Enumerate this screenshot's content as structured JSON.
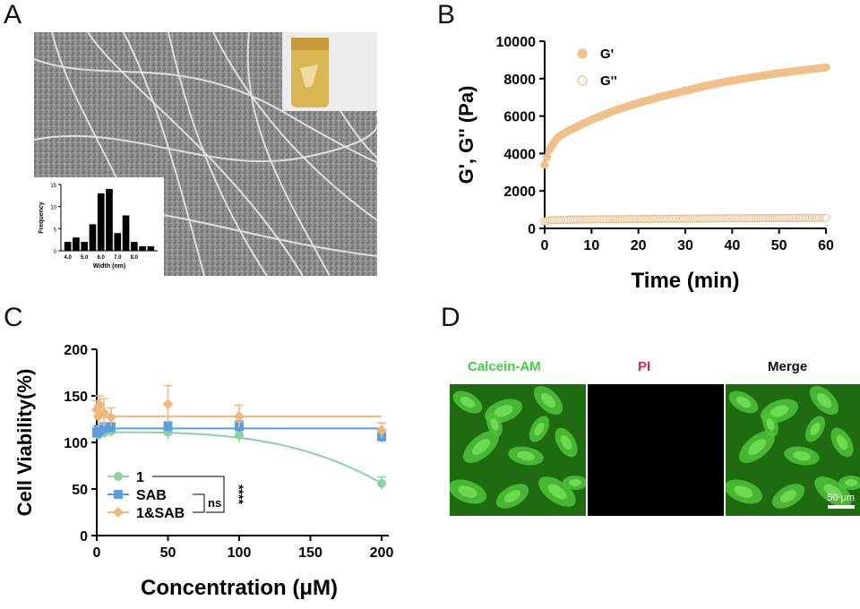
{
  "panels": {
    "A": "A",
    "B": "B",
    "C": "C",
    "D": "D"
  },
  "chart_data": [
    {
      "panel": "A",
      "type": "bar",
      "title": "",
      "xlabel": "Width (nm)",
      "ylabel": "Frequency",
      "x_ticks": [
        "4.0",
        "5.0",
        "6.0",
        "7.0",
        "8.0"
      ],
      "y_ticks": [
        0,
        5,
        10,
        15
      ],
      "ylim": [
        0,
        15
      ],
      "categories": [
        "4.0",
        "4.5",
        "5.0",
        "5.5",
        "6.0",
        "6.5",
        "7.0",
        "7.5",
        "8.0"
      ],
      "values": [
        2,
        3,
        2,
        6,
        13,
        14,
        4,
        8,
        2
      ],
      "extra_values": [
        1,
        1
      ]
    },
    {
      "panel": "B",
      "type": "scatter",
      "xlabel": "Time (min)",
      "ylabel": "G', G'' (Pa)",
      "xlim": [
        0,
        60
      ],
      "ylim": [
        0,
        10000
      ],
      "x_ticks": [
        0,
        10,
        20,
        30,
        40,
        50,
        60
      ],
      "y_ticks": [
        0,
        2000,
        4000,
        6000,
        8000,
        10000
      ],
      "legend": "top-left",
      "series": [
        {
          "name": "G'",
          "color": "#f0c08a",
          "filled": true,
          "x": [
            0,
            1,
            2,
            3,
            5,
            7,
            10,
            15,
            20,
            25,
            30,
            35,
            40,
            45,
            50,
            55,
            60
          ],
          "y": [
            3400,
            4200,
            4600,
            4900,
            5200,
            5450,
            5800,
            6300,
            6700,
            7050,
            7350,
            7650,
            7900,
            8100,
            8300,
            8450,
            8600
          ]
        },
        {
          "name": "G''",
          "color": "#f0c08a",
          "filled": false,
          "x": [
            0,
            1,
            2,
            3,
            5,
            7,
            10,
            15,
            20,
            25,
            30,
            35,
            40,
            45,
            50,
            55,
            60
          ],
          "y": [
            380,
            420,
            440,
            450,
            460,
            470,
            480,
            490,
            500,
            510,
            520,
            530,
            540,
            545,
            550,
            555,
            560
          ]
        }
      ]
    },
    {
      "panel": "C",
      "type": "line",
      "xlabel": "Concentration (μM)",
      "ylabel": "Cell Viability(%)",
      "xlim": [
        0,
        200
      ],
      "ylim": [
        0,
        200
      ],
      "x_ticks": [
        0,
        50,
        100,
        150,
        200
      ],
      "y_ticks": [
        0,
        50,
        100,
        150,
        200
      ],
      "legend": "bottom-left",
      "significance": [
        "****",
        "ns"
      ],
      "series": [
        {
          "name": "1",
          "color": "#8fd19e",
          "x": [
            0,
            1,
            2,
            5,
            10,
            50,
            100,
            200
          ],
          "y": [
            110,
            108,
            111,
            110,
            112,
            111,
            108,
            56
          ],
          "err": [
            6,
            5,
            6,
            5,
            6,
            8,
            8,
            7
          ]
        },
        {
          "name": "SAB",
          "color": "#5b9ee0",
          "x": [
            0,
            1,
            2,
            5,
            10,
            50,
            100,
            200
          ],
          "y": [
            110,
            112,
            113,
            115,
            116,
            117,
            117,
            106
          ],
          "err": [
            5,
            6,
            5,
            6,
            5,
            5,
            6,
            6
          ]
        },
        {
          "name": "1&SAB",
          "color": "#f0b67a",
          "x": [
            0,
            1,
            2,
            5,
            10,
            50,
            100,
            200
          ],
          "y": [
            135,
            128,
            140,
            132,
            127,
            141,
            128,
            113
          ],
          "err": [
            10,
            12,
            10,
            15,
            10,
            20,
            12,
            8
          ]
        }
      ]
    }
  ],
  "panelD": {
    "titles": [
      "Calcein-AM",
      "PI",
      "Merge"
    ],
    "title_colors": [
      "#3bd13b",
      "#e0206a",
      "#111111"
    ],
    "scalebar": "50 μm"
  }
}
